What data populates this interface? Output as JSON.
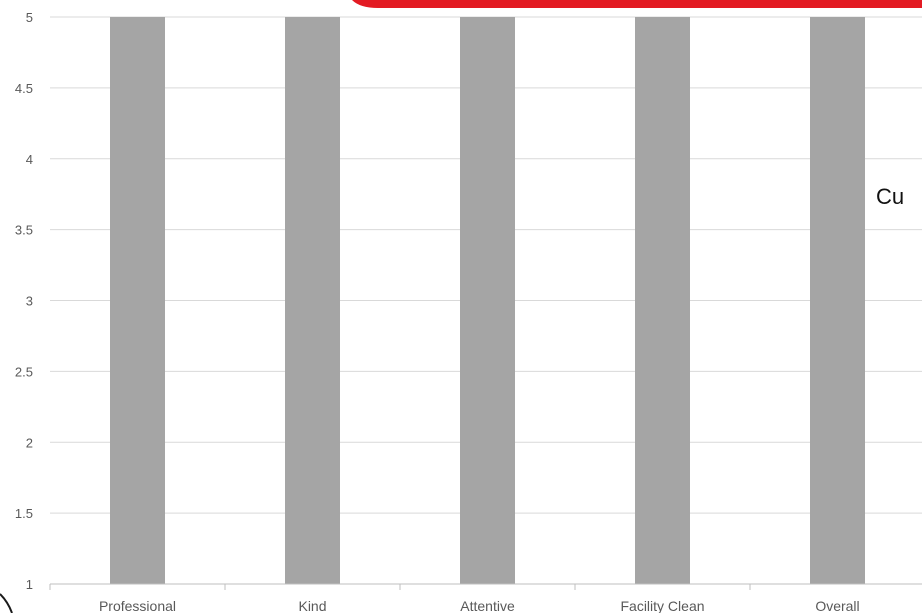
{
  "colors": {
    "bar": "#a5a5a5",
    "grid": "#d9d9d9",
    "axis": "#bfbfbf",
    "tick_text": "#595959",
    "banner": "#e31b23",
    "outline": "#1a1a1a"
  },
  "overlay": {
    "partial_text": "Cu"
  },
  "chart_data": {
    "type": "bar",
    "categories": [
      "Professional",
      "Kind",
      "Attentive",
      "Facility Clean",
      "Overall"
    ],
    "values": [
      5,
      5,
      5,
      5,
      5
    ],
    "ylim": [
      1,
      5
    ],
    "yticks": [
      1,
      1.5,
      2,
      2.5,
      3,
      3.5,
      4,
      4.5,
      5
    ],
    "ytick_labels": [
      "1",
      "1.5",
      "2",
      "2.5",
      "3",
      "3.5",
      "4",
      "4.5",
      "5"
    ],
    "title": "",
    "xlabel": "",
    "ylabel": "",
    "grid": true,
    "legend": "none"
  }
}
